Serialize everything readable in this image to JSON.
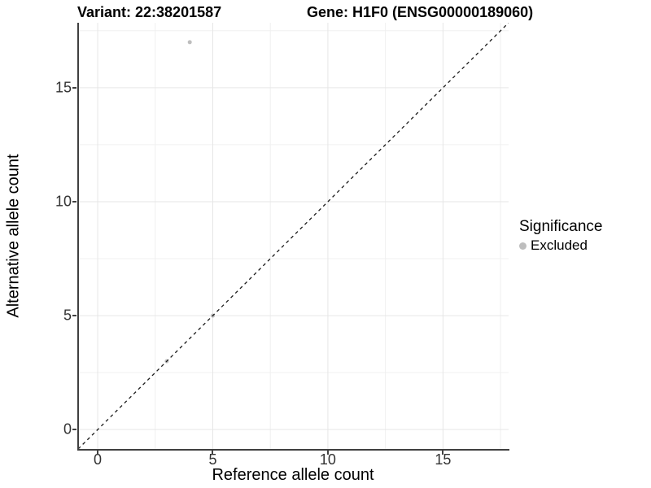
{
  "header": {
    "variant_title": "Variant: 22:38201587",
    "gene_title": "Gene: H1F0 (ENSG00000189060)"
  },
  "chart_data": {
    "type": "scatter",
    "title_left": "Variant: 22:38201587",
    "title_right": "Gene: H1F0 (ENSG00000189060)",
    "xlabel": "Reference allele count",
    "ylabel": "Alternative allele count",
    "xlim": [
      -0.85,
      17.85
    ],
    "ylim": [
      -0.85,
      17.85
    ],
    "x_ticks": [
      0,
      5,
      10,
      15
    ],
    "y_ticks": [
      0,
      5,
      10,
      15
    ],
    "minor_ticks": [
      2.5,
      7.5,
      12.5,
      17.5
    ],
    "grid": "major_and_minor",
    "reference_line": {
      "kind": "identity",
      "style": "dashed",
      "from": [
        -0.85,
        -0.85
      ],
      "to": [
        17.85,
        17.85
      ]
    },
    "series": [
      {
        "name": "Excluded",
        "color": "#bebebe",
        "points": [
          [
            3,
            3
          ],
          [
            5,
            5
          ],
          [
            4,
            17
          ]
        ]
      }
    ],
    "legend": {
      "position": "right",
      "title": "Significance",
      "entries": [
        {
          "label": "Excluded",
          "color": "#bebebe"
        }
      ]
    }
  },
  "colors": {
    "point": "#bebebe",
    "grid_major": "#e6e6e6",
    "grid_minor": "#f0f0f0",
    "axis": "#404040",
    "dashed_line": "#1a1a1a",
    "tick_text": "#333333"
  }
}
